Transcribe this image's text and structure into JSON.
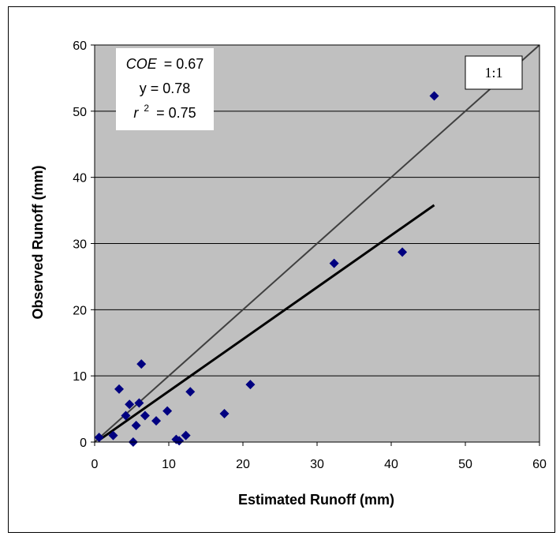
{
  "chart_data": {
    "type": "scatter",
    "xlabel": "Estimated Runoff (mm)",
    "ylabel": "Observed Runoff (mm)",
    "xlim": [
      0,
      60
    ],
    "ylim": [
      0,
      60
    ],
    "xticks": [
      "0",
      "10",
      "20",
      "30",
      "40",
      "50",
      "60"
    ],
    "yticks": [
      "0",
      "10",
      "20",
      "30",
      "40",
      "50",
      "60"
    ],
    "grid": "horizontal",
    "plot_background": "#c0c0c0",
    "marker_color": "#000080",
    "marker_shape": "diamond",
    "points": [
      {
        "x": 0.6,
        "y": 0.7
      },
      {
        "x": 2.5,
        "y": 1.0
      },
      {
        "x": 3.3,
        "y": 8.0
      },
      {
        "x": 4.2,
        "y": 4.0
      },
      {
        "x": 4.7,
        "y": 5.7
      },
      {
        "x": 5.2,
        "y": 0.0
      },
      {
        "x": 5.6,
        "y": 2.5
      },
      {
        "x": 6.0,
        "y": 5.9
      },
      {
        "x": 6.3,
        "y": 11.8
      },
      {
        "x": 6.8,
        "y": 4.0
      },
      {
        "x": 8.3,
        "y": 3.2
      },
      {
        "x": 9.8,
        "y": 4.7
      },
      {
        "x": 11.0,
        "y": 0.4
      },
      {
        "x": 11.4,
        "y": 0.2
      },
      {
        "x": 12.3,
        "y": 1.0
      },
      {
        "x": 12.9,
        "y": 7.6
      },
      {
        "x": 17.5,
        "y": 4.3
      },
      {
        "x": 21.0,
        "y": 8.7
      },
      {
        "x": 32.3,
        "y": 27.0
      },
      {
        "x": 41.5,
        "y": 28.7
      },
      {
        "x": 45.8,
        "y": 52.3
      }
    ],
    "lines": [
      {
        "kind": "1:1",
        "label": "1:1",
        "from": [
          0,
          0
        ],
        "to": [
          60,
          60
        ],
        "color": "#404040"
      },
      {
        "kind": "regression",
        "from": [
          0.6,
          0.3
        ],
        "to": [
          45.8,
          35.8
        ],
        "color": "#000000"
      }
    ],
    "annotation": {
      "coe_label": "COE",
      "coe_value": "= 0.67",
      "y_text": "y = 0.78",
      "r_label": "r",
      "r_exp": "2",
      "r_value": "= 0.75"
    }
  }
}
